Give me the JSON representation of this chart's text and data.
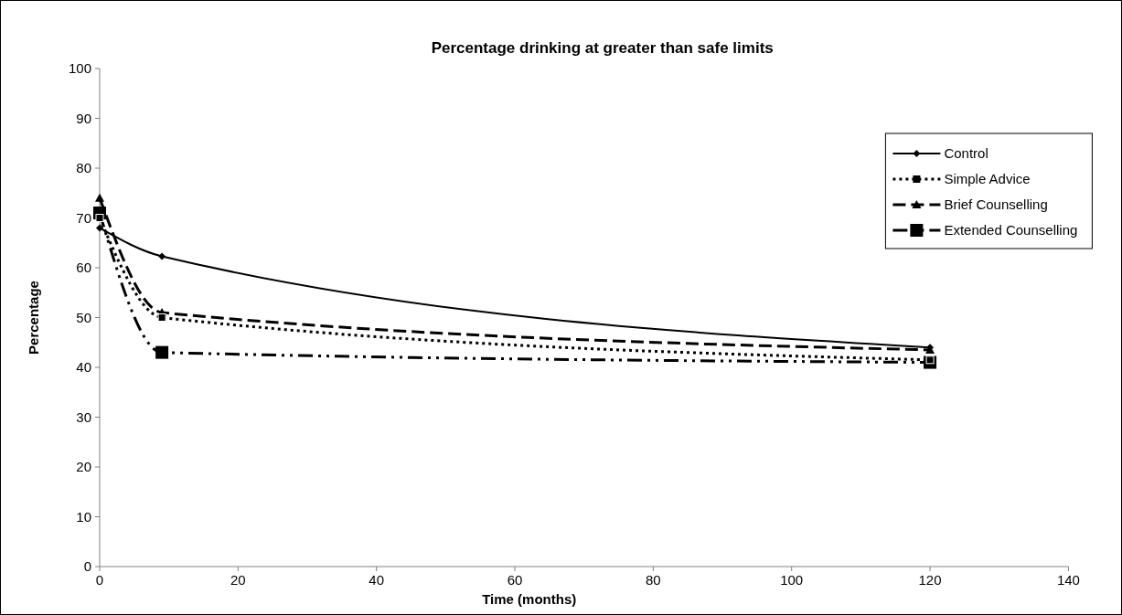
{
  "chart_data": {
    "type": "line",
    "title": "Percentage drinking at greater than safe limits",
    "xlabel": "Time (months)",
    "ylabel": "Percentage",
    "xlim": [
      0,
      140
    ],
    "xticks": [
      0,
      20,
      40,
      60,
      80,
      100,
      120,
      140
    ],
    "ylim": [
      0,
      100
    ],
    "yticks": [
      0,
      10,
      20,
      30,
      40,
      50,
      60,
      70,
      80,
      90,
      100
    ],
    "grid": false,
    "legend": "top right",
    "series": [
      {
        "name": "Control",
        "color": "#000000",
        "x": [
          0,
          9,
          120
        ],
        "values": [
          68,
          62.3,
          44
        ],
        "marker": "diamond",
        "line_style": "solid"
      },
      {
        "name": "Simple Advice",
        "color": "#000000",
        "x": [
          0,
          9,
          120
        ],
        "values": [
          70,
          50,
          41.5
        ],
        "marker": "square",
        "line_style": "dotted"
      },
      {
        "name": "Brief Counselling",
        "color": "#000000",
        "x": [
          0,
          9,
          120
        ],
        "values": [
          74,
          51,
          43.5
        ],
        "marker": "triangle",
        "line_style": "dashed"
      },
      {
        "name": "Extended Counselling",
        "color": "#000000",
        "x": [
          0,
          9,
          120
        ],
        "values": [
          71,
          43,
          41
        ],
        "marker": "square",
        "line_style": "dashed"
      }
    ]
  }
}
